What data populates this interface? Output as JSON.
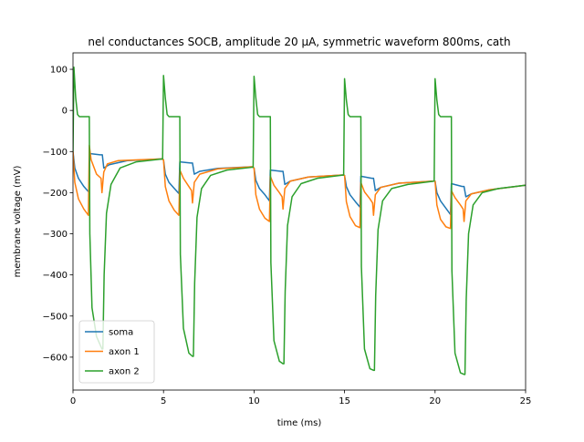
{
  "chart_data": {
    "type": "line",
    "title": "nel conductances SOCB, amplitude 20 μA, symmetric waveform 800ms, cath",
    "xlabel": "time (ms)",
    "ylabel": "membrane voltage (mV)",
    "xlim": [
      0,
      25
    ],
    "ylim": [
      -680,
      140
    ],
    "xticks": [
      0,
      5,
      10,
      15,
      20,
      25
    ],
    "yticks": [
      100,
      0,
      -100,
      -200,
      -300,
      -400,
      -500,
      -600
    ],
    "grid": false,
    "legend_position": "lower-left",
    "series": [
      {
        "name": "soma",
        "color": "#1f77b4",
        "points": [
          [
            0,
            -100
          ],
          [
            0.1,
            -140
          ],
          [
            0.3,
            -165
          ],
          [
            0.6,
            -185
          ],
          [
            0.9,
            -200
          ],
          [
            0.92,
            -105
          ],
          [
            1.5,
            -108
          ],
          [
            1.62,
            -108
          ],
          [
            1.7,
            -140
          ],
          [
            2.0,
            -132
          ],
          [
            3.0,
            -122
          ],
          [
            4.9,
            -118
          ],
          [
            5.0,
            -120
          ],
          [
            5.1,
            -155
          ],
          [
            5.3,
            -175
          ],
          [
            5.6,
            -190
          ],
          [
            5.85,
            -202
          ],
          [
            5.9,
            -125
          ],
          [
            6.5,
            -128
          ],
          [
            6.6,
            -128
          ],
          [
            6.7,
            -155
          ],
          [
            7.0,
            -148
          ],
          [
            8.0,
            -141
          ],
          [
            9.9,
            -137
          ],
          [
            10.0,
            -140
          ],
          [
            10.1,
            -170
          ],
          [
            10.3,
            -190
          ],
          [
            10.6,
            -205
          ],
          [
            10.85,
            -220
          ],
          [
            10.9,
            -145
          ],
          [
            11.5,
            -148
          ],
          [
            11.6,
            -148
          ],
          [
            11.7,
            -180
          ],
          [
            12.0,
            -172
          ],
          [
            13.0,
            -162
          ],
          [
            14.9,
            -157
          ],
          [
            15.0,
            -158
          ],
          [
            15.1,
            -185
          ],
          [
            15.3,
            -205
          ],
          [
            15.6,
            -222
          ],
          [
            15.85,
            -235
          ],
          [
            15.9,
            -160
          ],
          [
            16.5,
            -165
          ],
          [
            16.6,
            -165
          ],
          [
            16.7,
            -195
          ],
          [
            17.0,
            -187
          ],
          [
            18.0,
            -177
          ],
          [
            19.9,
            -172
          ],
          [
            20.0,
            -172
          ],
          [
            20.1,
            -200
          ],
          [
            20.3,
            -220
          ],
          [
            20.6,
            -238
          ],
          [
            20.85,
            -253
          ],
          [
            20.9,
            -178
          ],
          [
            21.5,
            -185
          ],
          [
            21.6,
            -185
          ],
          [
            21.7,
            -210
          ],
          [
            22.0,
            -203
          ],
          [
            23.0,
            -193
          ],
          [
            25.0,
            -182
          ]
        ]
      },
      {
        "name": "axon 1",
        "color": "#ff7f0e",
        "points": [
          [
            0,
            -100
          ],
          [
            0.1,
            -175
          ],
          [
            0.3,
            -215
          ],
          [
            0.6,
            -240
          ],
          [
            0.85,
            -255
          ],
          [
            0.9,
            -85
          ],
          [
            1.0,
            -120
          ],
          [
            1.3,
            -155
          ],
          [
            1.55,
            -165
          ],
          [
            1.6,
            -200
          ],
          [
            1.7,
            -150
          ],
          [
            1.9,
            -130
          ],
          [
            2.5,
            -122
          ],
          [
            4.9,
            -118
          ],
          [
            5.0,
            -120
          ],
          [
            5.1,
            -185
          ],
          [
            5.3,
            -220
          ],
          [
            5.6,
            -243
          ],
          [
            5.85,
            -255
          ],
          [
            5.9,
            -145
          ],
          [
            6.1,
            -165
          ],
          [
            6.4,
            -185
          ],
          [
            6.55,
            -195
          ],
          [
            6.6,
            -225
          ],
          [
            6.7,
            -175
          ],
          [
            7.0,
            -155
          ],
          [
            8.0,
            -142
          ],
          [
            9.9,
            -137
          ],
          [
            10.0,
            -140
          ],
          [
            10.1,
            -205
          ],
          [
            10.3,
            -240
          ],
          [
            10.6,
            -262
          ],
          [
            10.85,
            -270
          ],
          [
            10.9,
            -160
          ],
          [
            11.1,
            -182
          ],
          [
            11.4,
            -200
          ],
          [
            11.55,
            -210
          ],
          [
            11.6,
            -240
          ],
          [
            11.7,
            -190
          ],
          [
            12.0,
            -172
          ],
          [
            13.0,
            -162
          ],
          [
            14.9,
            -157
          ],
          [
            15.0,
            -158
          ],
          [
            15.1,
            -222
          ],
          [
            15.3,
            -258
          ],
          [
            15.6,
            -280
          ],
          [
            15.85,
            -285
          ],
          [
            15.9,
            -175
          ],
          [
            16.1,
            -198
          ],
          [
            16.4,
            -215
          ],
          [
            16.55,
            -225
          ],
          [
            16.6,
            -255
          ],
          [
            16.7,
            -205
          ],
          [
            17.0,
            -187
          ],
          [
            18.0,
            -177
          ],
          [
            19.9,
            -172
          ],
          [
            20.0,
            -172
          ],
          [
            20.1,
            -230
          ],
          [
            20.3,
            -265
          ],
          [
            20.6,
            -283
          ],
          [
            20.85,
            -287
          ],
          [
            20.9,
            -195
          ],
          [
            21.1,
            -212
          ],
          [
            21.4,
            -230
          ],
          [
            21.55,
            -240
          ],
          [
            21.6,
            -270
          ],
          [
            21.7,
            -220
          ],
          [
            22.0,
            -203
          ],
          [
            23.0,
            -193
          ],
          [
            25.0,
            -182
          ]
        ]
      },
      {
        "name": "axon 2",
        "color": "#2ca02c",
        "points": [
          [
            0,
            -100
          ],
          [
            0.05,
            105
          ],
          [
            0.15,
            30
          ],
          [
            0.25,
            -10
          ],
          [
            0.35,
            -15
          ],
          [
            0.9,
            -15
          ],
          [
            0.93,
            -300
          ],
          [
            1.05,
            -480
          ],
          [
            1.3,
            -550
          ],
          [
            1.6,
            -580
          ],
          [
            1.65,
            -580
          ],
          [
            1.72,
            -400
          ],
          [
            1.85,
            -250
          ],
          [
            2.1,
            -180
          ],
          [
            2.6,
            -140
          ],
          [
            3.5,
            -125
          ],
          [
            4.95,
            -118
          ],
          [
            5.0,
            85
          ],
          [
            5.1,
            30
          ],
          [
            5.2,
            -10
          ],
          [
            5.3,
            -15
          ],
          [
            5.9,
            -15
          ],
          [
            5.93,
            -350
          ],
          [
            6.1,
            -530
          ],
          [
            6.4,
            -590
          ],
          [
            6.6,
            -598
          ],
          [
            6.65,
            -598
          ],
          [
            6.72,
            -420
          ],
          [
            6.85,
            -260
          ],
          [
            7.1,
            -190
          ],
          [
            7.6,
            -158
          ],
          [
            8.5,
            -145
          ],
          [
            9.95,
            -138
          ],
          [
            10.0,
            83
          ],
          [
            10.1,
            30
          ],
          [
            10.2,
            -10
          ],
          [
            10.3,
            -15
          ],
          [
            10.9,
            -15
          ],
          [
            10.93,
            -370
          ],
          [
            11.1,
            -560
          ],
          [
            11.4,
            -610
          ],
          [
            11.6,
            -616
          ],
          [
            11.65,
            -616
          ],
          [
            11.72,
            -440
          ],
          [
            11.85,
            -280
          ],
          [
            12.1,
            -210
          ],
          [
            12.6,
            -178
          ],
          [
            13.5,
            -165
          ],
          [
            14.95,
            -157
          ],
          [
            15.0,
            77
          ],
          [
            15.1,
            25
          ],
          [
            15.2,
            -10
          ],
          [
            15.3,
            -15
          ],
          [
            15.9,
            -15
          ],
          [
            15.93,
            -380
          ],
          [
            16.1,
            -580
          ],
          [
            16.4,
            -628
          ],
          [
            16.6,
            -632
          ],
          [
            16.65,
            -632
          ],
          [
            16.72,
            -450
          ],
          [
            16.85,
            -290
          ],
          [
            17.1,
            -220
          ],
          [
            17.6,
            -190
          ],
          [
            18.5,
            -180
          ],
          [
            19.95,
            -172
          ],
          [
            20.0,
            77
          ],
          [
            20.1,
            25
          ],
          [
            20.2,
            -10
          ],
          [
            20.3,
            -15
          ],
          [
            20.9,
            -15
          ],
          [
            20.93,
            -390
          ],
          [
            21.1,
            -590
          ],
          [
            21.4,
            -638
          ],
          [
            21.6,
            -642
          ],
          [
            21.65,
            -642
          ],
          [
            21.72,
            -460
          ],
          [
            21.85,
            -300
          ],
          [
            22.1,
            -230
          ],
          [
            22.6,
            -200
          ],
          [
            23.5,
            -190
          ],
          [
            25.0,
            -182
          ]
        ]
      }
    ]
  }
}
